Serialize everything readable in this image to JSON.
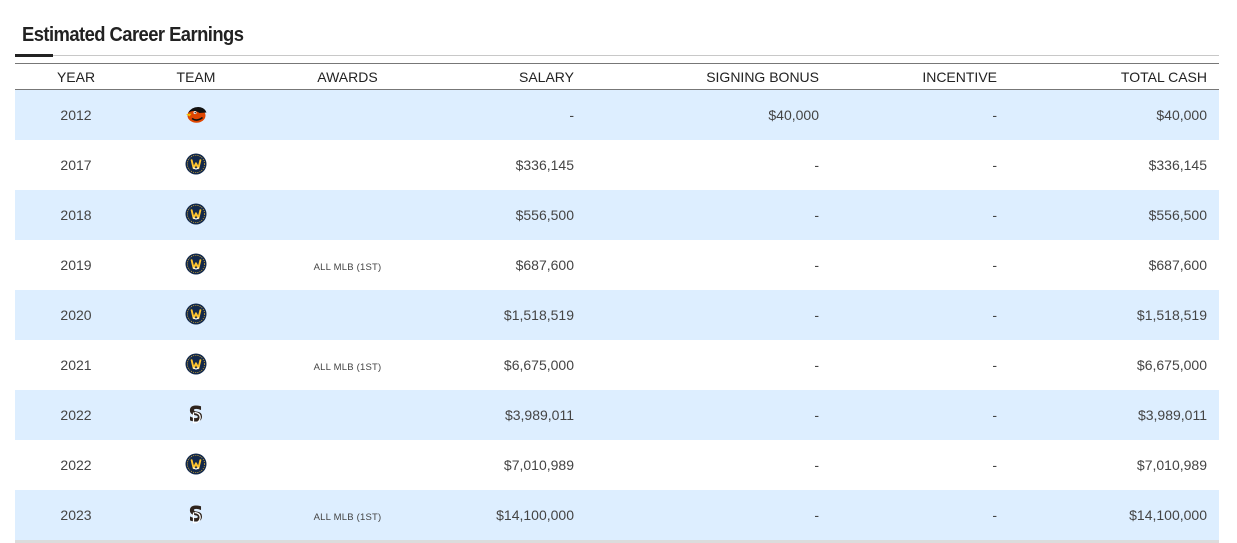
{
  "section": {
    "title": "Estimated Career Earnings"
  },
  "table": {
    "headers": {
      "year": "YEAR",
      "team": "TEAM",
      "awards": "AWARDS",
      "salary": "SALARY",
      "signing_bonus": "SIGNING BONUS",
      "incentive": "INCENTIVE",
      "total_cash": "TOTAL CASH"
    },
    "rows": [
      {
        "year": "2012",
        "team_icon": "orioles-logo-icon",
        "awards": "",
        "salary": "-",
        "signing_bonus": "$40,000",
        "incentive": "-",
        "total_cash": "$40,000"
      },
      {
        "year": "2017",
        "team_icon": "brewers-logo-icon",
        "awards": "",
        "salary": "$336,145",
        "signing_bonus": "-",
        "incentive": "-",
        "total_cash": "$336,145"
      },
      {
        "year": "2018",
        "team_icon": "brewers-logo-icon",
        "awards": "",
        "salary": "$556,500",
        "signing_bonus": "-",
        "incentive": "-",
        "total_cash": "$556,500"
      },
      {
        "year": "2019",
        "team_icon": "brewers-logo-icon",
        "awards": "ALL MLB (1ST)",
        "salary": "$687,600",
        "signing_bonus": "-",
        "incentive": "-",
        "total_cash": "$687,600"
      },
      {
        "year": "2020",
        "team_icon": "brewers-logo-icon",
        "awards": "",
        "salary": "$1,518,519",
        "signing_bonus": "-",
        "incentive": "-",
        "total_cash": "$1,518,519"
      },
      {
        "year": "2021",
        "team_icon": "brewers-logo-icon",
        "awards": "ALL MLB (1ST)",
        "salary": "$6,675,000",
        "signing_bonus": "-",
        "incentive": "-",
        "total_cash": "$6,675,000"
      },
      {
        "year": "2022",
        "team_icon": "padres-logo-icon",
        "awards": "",
        "salary": "$3,989,011",
        "signing_bonus": "-",
        "incentive": "-",
        "total_cash": "$3,989,011"
      },
      {
        "year": "2022",
        "team_icon": "brewers-logo-icon",
        "awards": "",
        "salary": "$7,010,989",
        "signing_bonus": "-",
        "incentive": "-",
        "total_cash": "$7,010,989"
      },
      {
        "year": "2023",
        "team_icon": "padres-logo-icon",
        "awards": "ALL MLB (1ST)",
        "salary": "$14,100,000",
        "signing_bonus": "-",
        "incentive": "-",
        "total_cash": "$14,100,000"
      }
    ]
  },
  "colors": {
    "row_stripe": "#ddeeff",
    "brewers_navy": "#12284b",
    "brewers_gold": "#ffc52f",
    "orioles_orange": "#df4601",
    "padres_brown": "#2f241d"
  }
}
